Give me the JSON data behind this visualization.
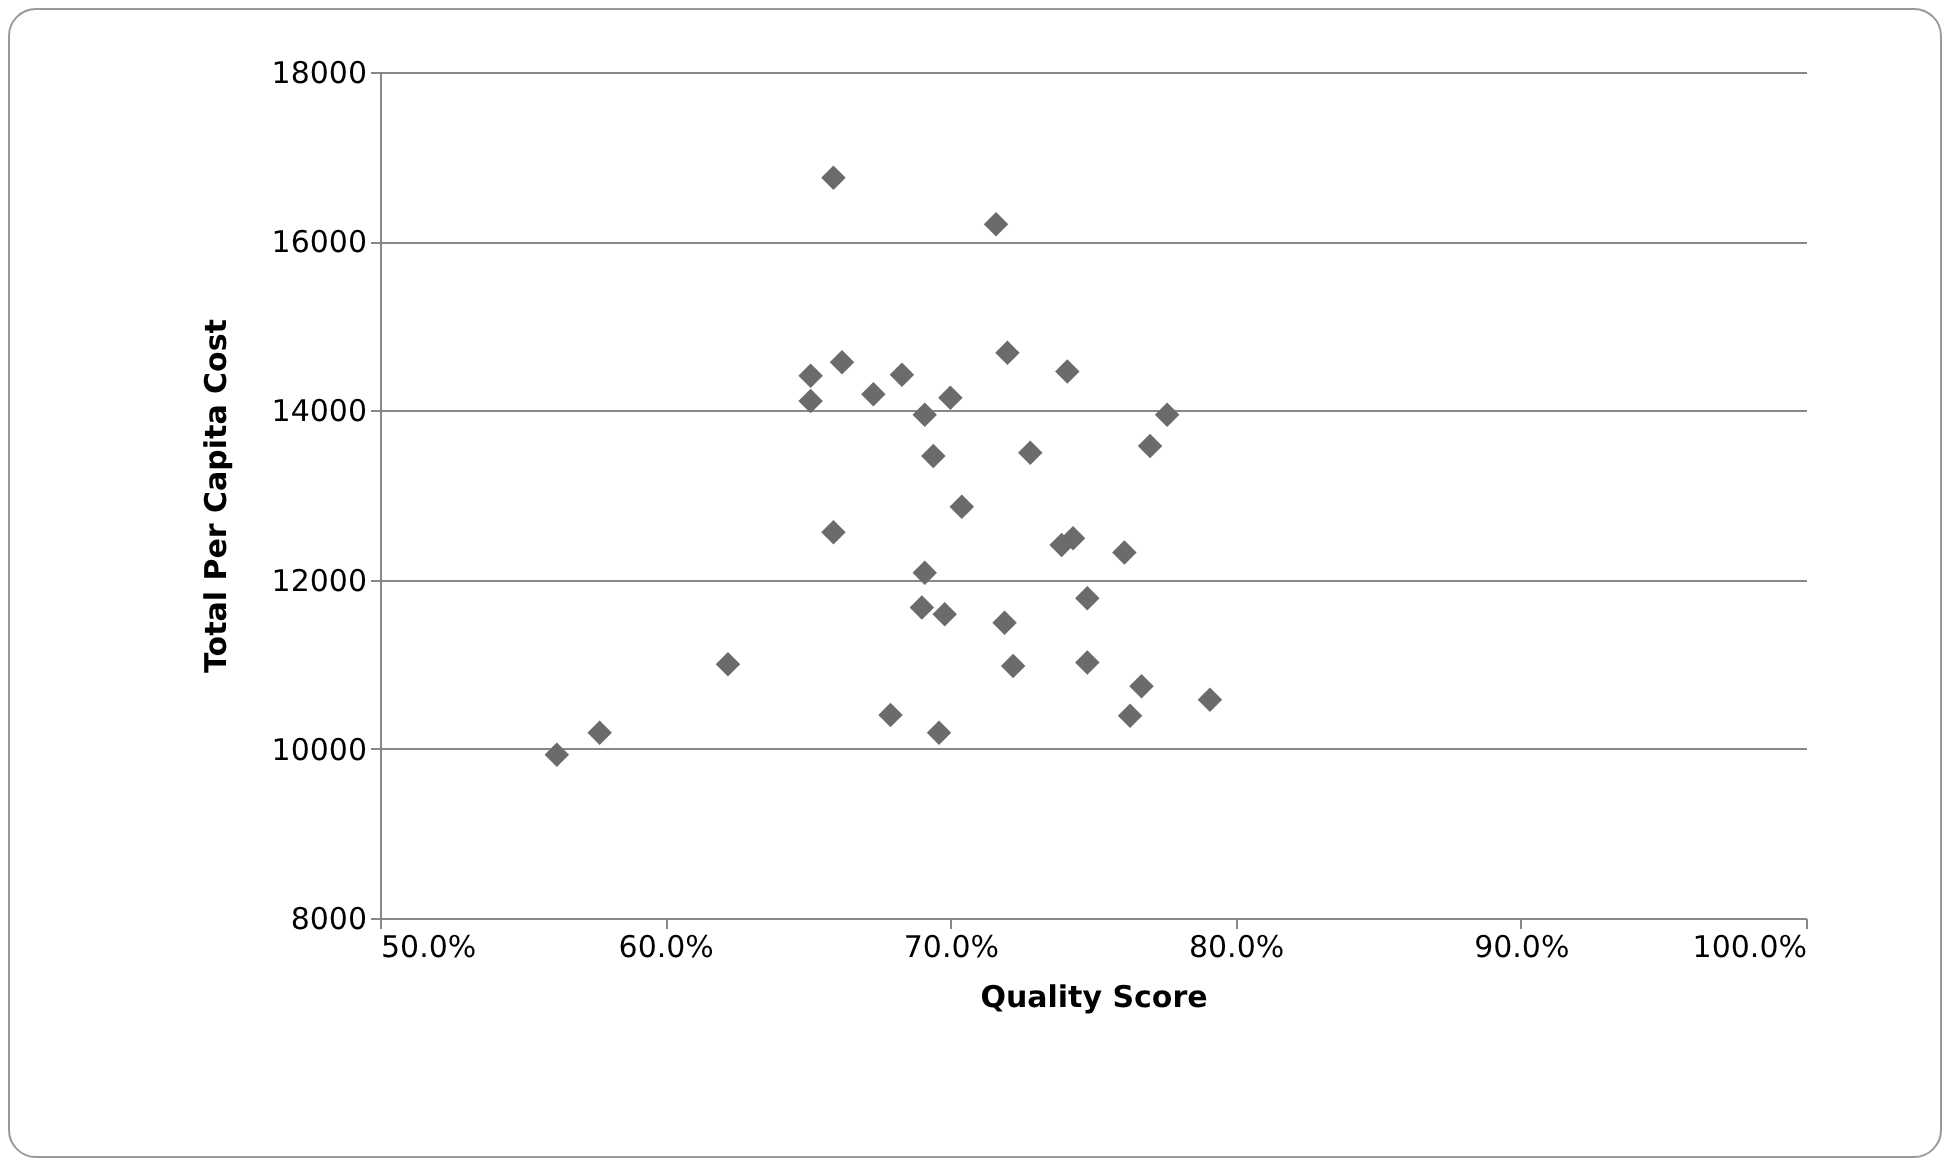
{
  "chart_data": {
    "type": "scatter",
    "xlabel": "Quality Score",
    "ylabel": "Total Per Capita Cost",
    "x": [
      56.2,
      57.7,
      62.2,
      65.9,
      71.6,
      72.0,
      74.1,
      66.2,
      65.1,
      65.1,
      68.3,
      67.3,
      70.0,
      69.1,
      77.6,
      77.0,
      69.4,
      72.8,
      70.4,
      65.9,
      73.9,
      74.3,
      76.1,
      69.1,
      74.8,
      69.0,
      69.8,
      71.9,
      72.2,
      74.8,
      76.7,
      76.3,
      79.1,
      67.9,
      69.6
    ],
    "series": [
      {
        "color": "#6b6b6b",
        "values": [
          9930,
          10190,
          11000,
          16750,
          16200,
          14680,
          14460,
          14570,
          14410,
          14110,
          14420,
          14190,
          14150,
          13950,
          13950,
          13580,
          13460,
          13500,
          12860,
          12560,
          12410,
          12490,
          12320,
          12080,
          11780,
          11670,
          11590,
          11490,
          10980,
          11020,
          10740,
          10390,
          10580,
          10400,
          10190
        ]
      }
    ],
    "xlim": [
      50,
      100
    ],
    "xticks": [
      {
        "value": 50,
        "label": "50.0%"
      },
      {
        "value": 60,
        "label": "60.0%"
      },
      {
        "value": 70,
        "label": "70.0%"
      },
      {
        "value": 80,
        "label": "80.0%"
      },
      {
        "value": 90,
        "label": "90.0%"
      },
      {
        "value": 100,
        "label": "100.0%"
      }
    ],
    "ylim": [
      8000,
      18000
    ],
    "yticks": [
      8000,
      10000,
      12000,
      14000,
      16000,
      18000
    ],
    "grid": "y",
    "marker": "diamond"
  }
}
